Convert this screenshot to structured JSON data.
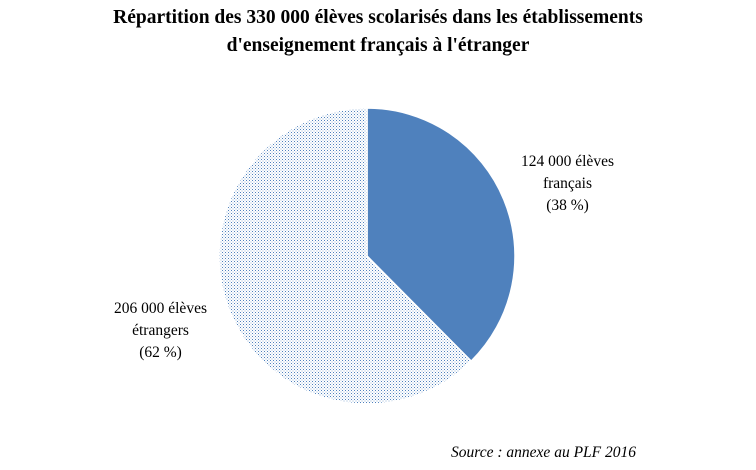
{
  "chart_data": {
    "type": "pie",
    "title_lines": [
      "Répartition des 330 000 élèves scolarisés dans les établissements",
      "d'enseignement français à l'étranger"
    ],
    "slices": [
      {
        "name": "élèves français",
        "value": 124000,
        "percent": 38,
        "label_lines": [
          "124 000 élèves",
          "français",
          "(38 %)"
        ],
        "color": "#4f81bd",
        "fill": "solid"
      },
      {
        "name": "élèves étrangers",
        "value": 206000,
        "percent": 62,
        "label_lines": [
          "206 000 élèves",
          "étrangers",
          "(62 %)"
        ],
        "color": "#4f81bd",
        "fill": "dotted"
      }
    ],
    "start_angle": "12 o'clock",
    "direction": "clockwise",
    "source": "Source : annexe au PLF 2016"
  }
}
